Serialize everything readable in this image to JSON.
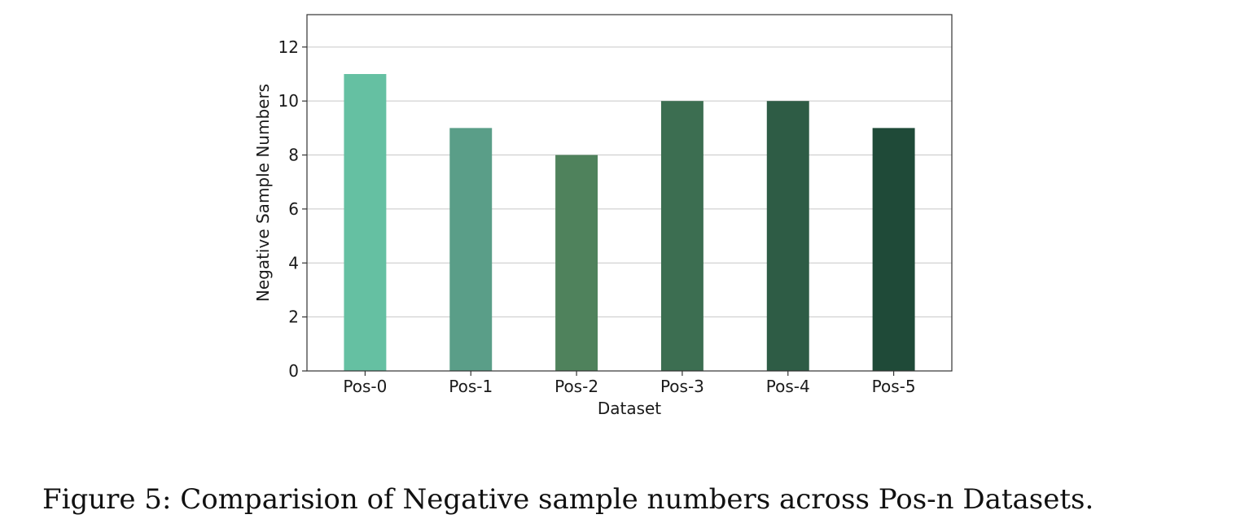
{
  "chart_data": {
    "type": "bar",
    "categories": [
      "Pos-0",
      "Pos-1",
      "Pos-2",
      "Pos-3",
      "Pos-4",
      "Pos-5"
    ],
    "values": [
      11,
      9,
      8,
      10,
      10,
      9
    ],
    "colors": [
      "#65c0a2",
      "#5a9e88",
      "#4f825c",
      "#3c6e51",
      "#2e5c45",
      "#1f4a38"
    ],
    "xlabel": "Dataset",
    "ylabel": "Negative Sample Numbers",
    "ylim": [
      0,
      13.2
    ],
    "yticks": [
      0,
      2,
      4,
      6,
      8,
      10,
      12
    ],
    "grid": "horizontal",
    "gridcolor": "#c8c8c8"
  },
  "caption": "Figure 5:  Comparision of Negative sample numbers across Pos-n Datasets."
}
